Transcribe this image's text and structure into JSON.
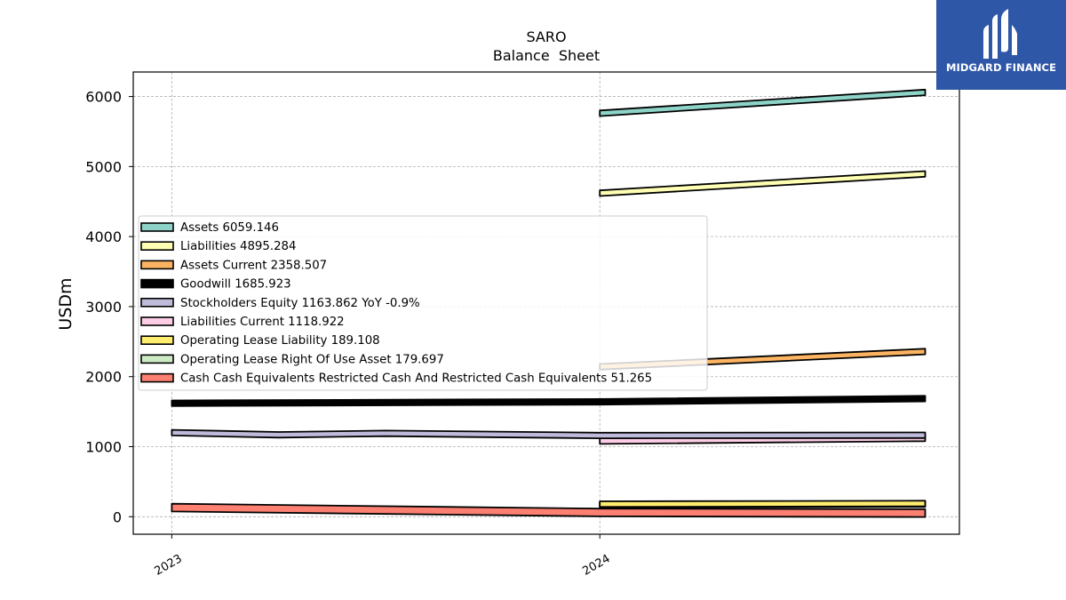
{
  "chart_data": {
    "type": "area",
    "title": "SARO",
    "subtitle": "Balance  Sheet",
    "ylabel": "USDm",
    "xlabel": "",
    "x_ticks": [
      "2023",
      "2024"
    ],
    "x_range": [
      2022.91,
      2024.84
    ],
    "ylim": [
      -250,
      6350
    ],
    "y_ticks": [
      0,
      1000,
      2000,
      3000,
      4000,
      5000,
      6000
    ],
    "grid": true,
    "legend_position": "upper-left-center",
    "series": [
      {
        "name": "Assets",
        "legend": "Assets  6059.146",
        "color": "#8dd3c7",
        "band": 80,
        "points": [
          [
            2024.0,
            5760
          ],
          [
            2024.76,
            6059.146
          ]
        ]
      },
      {
        "name": "Liabilities",
        "legend": "Liabilities  4895.284",
        "color": "#ffffb3",
        "band": 80,
        "points": [
          [
            2024.0,
            4620
          ],
          [
            2024.76,
            4895.284
          ]
        ]
      },
      {
        "name": "Assets Current",
        "legend": "Assets Current  2358.507",
        "color": "#fdb462",
        "band": 80,
        "points": [
          [
            2024.0,
            2140
          ],
          [
            2024.76,
            2358.507
          ]
        ]
      },
      {
        "name": "Goodwill",
        "legend": "Goodwill  1685.923",
        "color": "#000000",
        "band": 80,
        "points": [
          [
            2023.0,
            1620
          ],
          [
            2024.0,
            1640
          ],
          [
            2024.76,
            1685.923
          ]
        ]
      },
      {
        "name": "Stockholders Equity",
        "legend": "Stockholders Equity  1163.862 YoY -0.9%",
        "color": "#bebada",
        "band": 80,
        "points": [
          [
            2023.0,
            1200
          ],
          [
            2023.25,
            1170
          ],
          [
            2023.5,
            1190
          ],
          [
            2024.0,
            1160
          ],
          [
            2024.76,
            1163.862
          ]
        ]
      },
      {
        "name": "Liabilities Current",
        "legend": "Liabilities Current  1118.922",
        "color": "#fccde5",
        "band": 80,
        "points": [
          [
            2024.0,
            1080
          ],
          [
            2024.76,
            1118.922
          ]
        ]
      },
      {
        "name": "Operating Lease Liability",
        "legend": "Operating Lease Liability  189.108",
        "color": "#ffed6f",
        "band": 80,
        "points": [
          [
            2024.0,
            180
          ],
          [
            2024.76,
            189.108
          ]
        ]
      },
      {
        "name": "Operating Lease Right Of Use Asset",
        "legend": "Operating Lease Right Of Use Asset  179.697",
        "color": "#ccebc5",
        "band": 80,
        "points": [
          [
            2024.0,
            170
          ],
          [
            2024.76,
            179.697
          ]
        ]
      },
      {
        "name": "Cash Cash Equivalents Restricted Cash And Restricted Cash Equivalents",
        "legend": "Cash Cash Equivalents Restricted Cash And Restricted Cash Equivalents  51.265",
        "color": "#fb8072",
        "band": 110,
        "points": [
          [
            2023.0,
            130
          ],
          [
            2024.0,
            60
          ],
          [
            2024.76,
            51.265
          ]
        ]
      }
    ]
  },
  "logo": {
    "text": "MIDGARD FINANCE",
    "background": "#2f57a8"
  }
}
